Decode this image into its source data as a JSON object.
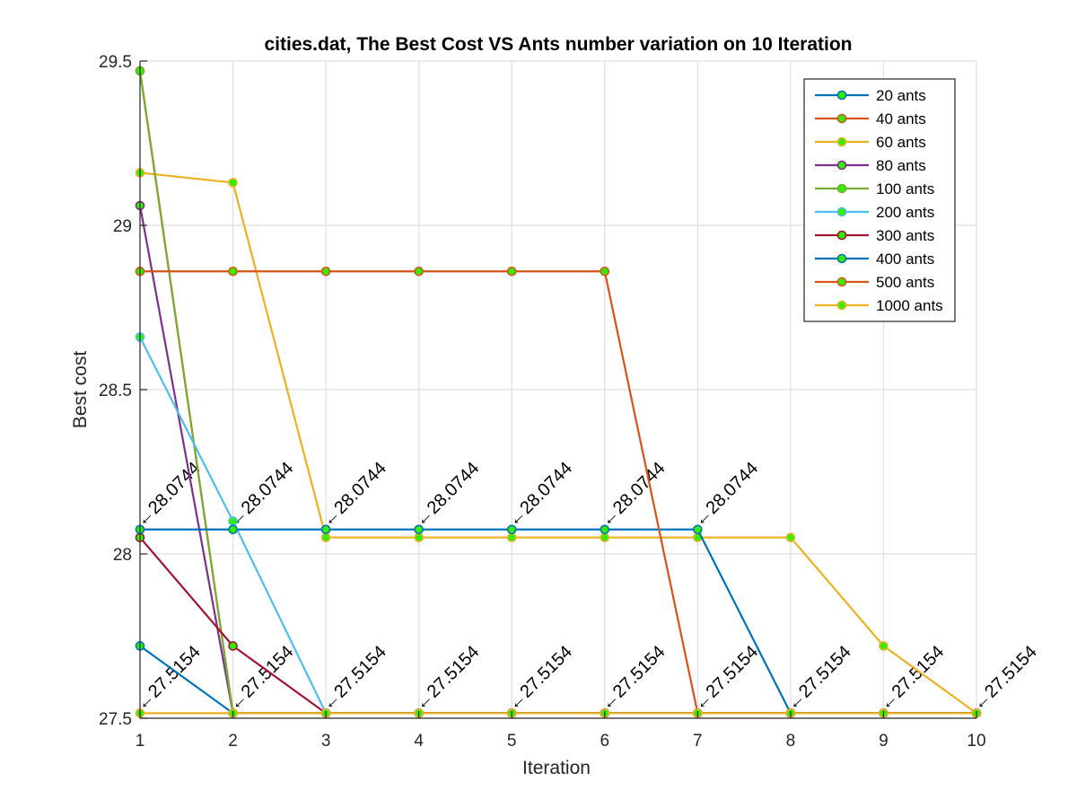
{
  "chart_data": {
    "type": "line",
    "title": "cities.dat, The Best Cost  VS Ants number variation on 10 Iteration",
    "xlabel": "Iteration",
    "ylabel": "Best cost",
    "xlim": [
      1,
      10
    ],
    "ylim": [
      27.5,
      29.5
    ],
    "xticks": [
      1,
      2,
      3,
      4,
      5,
      6,
      7,
      8,
      9,
      10
    ],
    "yticks": [
      27.5,
      28,
      28.5,
      29,
      29.5
    ],
    "ytick_labels": [
      "27.5",
      "28",
      "28.5",
      "29",
      "29.5"
    ],
    "grid": true,
    "legend_position": "top-right",
    "marker_face_color": "#33ee00",
    "x": [
      1,
      2,
      3,
      4,
      5,
      6,
      7,
      8,
      9,
      10
    ],
    "series": [
      {
        "name": "20 ants",
        "color": "#0072bd",
        "values": [
          27.72,
          27.5154,
          27.5154,
          27.5154,
          27.5154,
          27.5154,
          27.5154,
          27.5154,
          27.5154,
          27.5154
        ]
      },
      {
        "name": "40 ants",
        "color": "#d95319",
        "values": [
          29.47,
          27.5154,
          27.5154,
          27.5154,
          27.5154,
          27.5154,
          27.5154,
          27.5154,
          27.5154,
          27.5154
        ]
      },
      {
        "name": "60 ants",
        "color": "#edb120",
        "values": [
          29.16,
          29.13,
          28.05,
          28.05,
          28.05,
          28.05,
          28.05,
          28.05,
          27.72,
          27.5154
        ]
      },
      {
        "name": "80 ants",
        "color": "#7e2f8e",
        "values": [
          29.06,
          27.5154,
          27.5154,
          27.5154,
          27.5154,
          27.5154,
          27.5154,
          27.5154,
          27.5154,
          27.5154
        ]
      },
      {
        "name": "100 ants",
        "color": "#77ac30",
        "values": [
          29.47,
          27.5154,
          27.5154,
          27.5154,
          27.5154,
          27.5154,
          27.5154,
          27.5154,
          27.5154,
          27.5154
        ]
      },
      {
        "name": "200 ants",
        "color": "#4dbeee",
        "values": [
          28.66,
          28.1,
          27.5154,
          27.5154,
          27.5154,
          27.5154,
          27.5154,
          27.5154,
          27.5154,
          27.5154
        ]
      },
      {
        "name": "300 ants",
        "color": "#a2142f",
        "values": [
          28.05,
          27.72,
          27.5154,
          27.5154,
          27.5154,
          27.5154,
          27.5154,
          27.5154,
          27.5154,
          27.5154
        ]
      },
      {
        "name": "400 ants",
        "color": "#0072bd",
        "values": [
          28.0744,
          28.0744,
          28.0744,
          28.0744,
          28.0744,
          28.0744,
          28.0744,
          27.5154,
          27.5154,
          27.5154
        ]
      },
      {
        "name": "500 ants",
        "color": "#d95319",
        "values": [
          28.86,
          28.86,
          28.86,
          28.86,
          28.86,
          28.86,
          27.5154,
          27.5154,
          27.5154,
          27.5154
        ]
      },
      {
        "name": "1000 ants",
        "color": "#edb120",
        "values": [
          27.5154,
          27.5154,
          27.5154,
          27.5154,
          27.5154,
          27.5154,
          27.5154,
          27.5154,
          27.5154,
          27.5154
        ]
      }
    ],
    "annotations": [
      {
        "text": "←28.0744",
        "x": 1,
        "y": 28.0744
      },
      {
        "text": "←28.0744",
        "x": 2,
        "y": 28.0744
      },
      {
        "text": "←28.0744",
        "x": 3,
        "y": 28.0744
      },
      {
        "text": "←28.0744",
        "x": 4,
        "y": 28.0744
      },
      {
        "text": "←28.0744",
        "x": 5,
        "y": 28.0744
      },
      {
        "text": "←28.0744",
        "x": 6,
        "y": 28.0744
      },
      {
        "text": "←28.0744",
        "x": 7,
        "y": 28.0744
      },
      {
        "text": "←27.5154",
        "x": 1,
        "y": 27.5154
      },
      {
        "text": "←27.5154",
        "x": 2,
        "y": 27.5154
      },
      {
        "text": "←27.5154",
        "x": 3,
        "y": 27.5154
      },
      {
        "text": "←27.5154",
        "x": 4,
        "y": 27.5154
      },
      {
        "text": "←27.5154",
        "x": 5,
        "y": 27.5154
      },
      {
        "text": "←27.5154",
        "x": 6,
        "y": 27.5154
      },
      {
        "text": "←27.5154",
        "x": 7,
        "y": 27.5154
      },
      {
        "text": "←27.5154",
        "x": 8,
        "y": 27.5154
      },
      {
        "text": "←27.5154",
        "x": 9,
        "y": 27.5154
      },
      {
        "text": "←27.5154",
        "x": 10,
        "y": 27.5154
      }
    ]
  }
}
